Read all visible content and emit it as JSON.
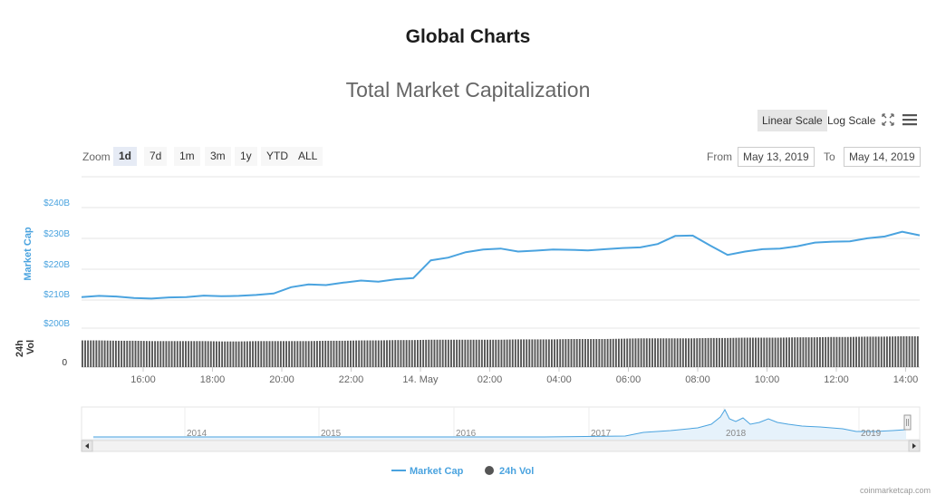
{
  "page": {
    "title": "Global Charts"
  },
  "chart_data": {
    "type": "line",
    "title": "Total Market Capitalization",
    "scale_buttons": [
      {
        "label": "Linear Scale",
        "active": true
      },
      {
        "label": "Log Scale",
        "active": false
      }
    ],
    "zoom": {
      "label": "Zoom",
      "buttons": [
        {
          "label": "1d",
          "active": true
        },
        {
          "label": "7d",
          "active": false
        },
        {
          "label": "1m",
          "active": false
        },
        {
          "label": "3m",
          "active": false
        },
        {
          "label": "1y",
          "active": false
        },
        {
          "label": "YTD",
          "active": false
        },
        {
          "label": "ALL",
          "active": false
        }
      ]
    },
    "range": {
      "from_label": "From",
      "from_value": "May 13, 2019",
      "to_label": "To",
      "to_value": "May 14, 2019"
    },
    "ylabel": "Market Cap",
    "ylabel_volume": "24h Vol",
    "y_ticks": [
      "$240B",
      "$230B",
      "$220B",
      "$210B",
      "$200B"
    ],
    "volume_ticks": [
      "0"
    ],
    "x_ticks": [
      "16:00",
      "18:00",
      "20:00",
      "22:00",
      "14. May",
      "02:00",
      "04:00",
      "06:00",
      "08:00",
      "10:00",
      "12:00",
      "14:00"
    ],
    "ylim": [
      197,
      242
    ],
    "series": [
      {
        "name": "Market Cap",
        "color": "#4aa3df",
        "x_hours": [
          0.0,
          0.5,
          1.0,
          1.5,
          2.0,
          2.5,
          3.0,
          3.5,
          4.0,
          4.5,
          5.0,
          5.5,
          6.0,
          6.5,
          7.0,
          7.5,
          8.0,
          8.5,
          9.0,
          9.5,
          10.0,
          10.5,
          11.0,
          11.5,
          12.0,
          12.5,
          13.0,
          13.5,
          14.0,
          14.5,
          15.0,
          15.5,
          16.0,
          16.5,
          17.0,
          17.5,
          18.0,
          18.5,
          19.0,
          19.5,
          20.0,
          20.5,
          21.0,
          21.5,
          22.0,
          22.5,
          23.0,
          23.5,
          24.0
        ],
        "values": [
          210.3,
          210.7,
          210.5,
          210.0,
          209.8,
          210.2,
          210.3,
          210.8,
          210.6,
          210.7,
          211.0,
          211.5,
          213.6,
          214.5,
          214.3,
          215.1,
          215.8,
          215.4,
          216.2,
          216.6,
          222.5,
          223.4,
          225.2,
          226.1,
          226.4,
          225.4,
          225.7,
          226.1,
          226.0,
          225.8,
          226.2,
          226.6,
          226.8,
          227.9,
          230.6,
          230.7,
          227.4,
          224.3,
          225.4,
          226.2,
          226.4,
          227.2,
          228.4,
          228.7,
          228.8,
          229.8,
          230.4,
          232.0,
          230.8
        ]
      },
      {
        "name": "24h Vol",
        "color": "#555555",
        "relative_values": [
          0.78,
          0.78,
          0.77,
          0.77,
          0.76,
          0.76,
          0.76,
          0.76,
          0.75,
          0.75,
          0.76,
          0.76,
          0.76,
          0.76,
          0.77,
          0.77,
          0.78,
          0.78,
          0.79,
          0.79,
          0.8,
          0.8,
          0.8,
          0.8,
          0.8,
          0.81,
          0.81,
          0.81,
          0.82,
          0.82,
          0.82,
          0.83,
          0.84,
          0.84,
          0.84,
          0.84,
          0.85,
          0.85,
          0.86,
          0.86,
          0.86,
          0.87,
          0.87,
          0.88,
          0.88,
          0.89,
          0.89,
          0.9,
          0.9
        ]
      }
    ],
    "navigator": {
      "x_ticks": [
        "2014",
        "2015",
        "2016",
        "2017",
        "2018",
        "2019"
      ]
    },
    "legend": [
      {
        "label": "Market Cap",
        "color": "#4aa3df",
        "marker": "line"
      },
      {
        "label": "24h Vol",
        "color": "#555555",
        "marker": "circle"
      }
    ],
    "legend_position": "bottom-center",
    "grid": true
  },
  "footer": {
    "credit": "coinmarketcap.com"
  }
}
